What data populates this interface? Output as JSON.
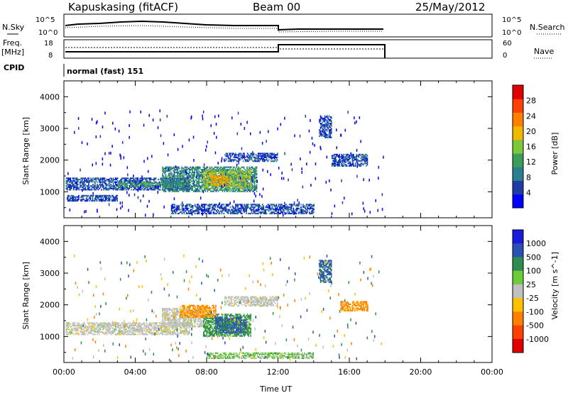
{
  "header": {
    "station": "Kapuskasing (fitACF)",
    "beam": "Beam 00",
    "date": "25/May/2012"
  },
  "top_panels": {
    "nsky_label": "N.Sky",
    "nsky_ticks": [
      "10^5",
      "10^0"
    ],
    "nsearch_label": "N.Search",
    "nsearch_ticks": [
      "10^5",
      "10^0"
    ],
    "freq_label": "Freq.",
    "freq_unit": "[MHz]",
    "freq_ticks": [
      "18",
      "8"
    ],
    "nave_label": "Nave",
    "nave_ticks": [
      "60",
      "0"
    ],
    "cpid_label": "CPID",
    "cpid_value": "normal (fast) 151"
  },
  "colors": {
    "power_scale": [
      "#0000ff",
      "#1e3ca8",
      "#2a7f8f",
      "#3a9e5a",
      "#7cc83c",
      "#f0b800",
      "#ff8000",
      "#ff4000",
      "#e00000"
    ],
    "velocity_scale": [
      "#1a1adc",
      "#2a50b4",
      "#2e8c4e",
      "#6ccc3a",
      "#c0c0c0",
      "#ffc000",
      "#ff8000",
      "#ff4000",
      "#e00000"
    ]
  },
  "chart_data": [
    {
      "type": "heatmap",
      "name_hint": "power",
      "xlabel": "Time UT",
      "ylabel": "Slant Range [km]",
      "xlim": [
        0,
        24
      ],
      "ylim": [
        180,
        4500
      ],
      "xticks": [
        "00:00",
        "04:00",
        "08:00",
        "12:00",
        "16:00",
        "20:00",
        "00:00"
      ],
      "yticks": [
        1000,
        2000,
        3000,
        4000
      ],
      "colorbar": {
        "label": "Power [dB]",
        "ticks": [
          "4",
          "8",
          "12",
          "16",
          "20",
          "24",
          "28"
        ],
        "range": [
          0,
          32
        ]
      },
      "regions": [
        {
          "t0": 0.1,
          "t1": 7.0,
          "r0": 1050,
          "r1": 1450,
          "value": 6
        },
        {
          "t0": 3.0,
          "t1": 7.0,
          "r0": 1150,
          "r1": 1300,
          "value": 12
        },
        {
          "t0": 5.5,
          "t1": 10.8,
          "r0": 1000,
          "r1": 1800,
          "value": 10
        },
        {
          "t0": 7.8,
          "t1": 10.5,
          "r0": 1100,
          "r1": 1700,
          "value": 16
        },
        {
          "t0": 8.2,
          "t1": 9.2,
          "r0": 1200,
          "r1": 1500,
          "value": 21
        },
        {
          "t0": 9.0,
          "t1": 12.0,
          "r0": 1950,
          "r1": 2200,
          "value": 6
        },
        {
          "t0": 0.2,
          "t1": 3.0,
          "r0": 700,
          "r1": 900,
          "value": 6
        },
        {
          "t0": 6.0,
          "t1": 14.0,
          "r0": 300,
          "r1": 600,
          "value": 6
        },
        {
          "t0": 14.3,
          "t1": 15.0,
          "r0": 2700,
          "r1": 3400,
          "value": 6
        },
        {
          "t0": 15.0,
          "t1": 17.0,
          "r0": 1800,
          "r1": 2200,
          "value": 6
        }
      ]
    },
    {
      "type": "heatmap",
      "name_hint": "velocity",
      "xlabel": "Time UT",
      "ylabel": "Slant Range [km]",
      "xlim": [
        0,
        24
      ],
      "ylim": [
        180,
        4500
      ],
      "xticks": [
        "00:00",
        "04:00",
        "08:00",
        "12:00",
        "16:00",
        "20:00",
        "00:00"
      ],
      "yticks": [
        1000,
        2000,
        3000,
        4000
      ],
      "colorbar": {
        "label": "Velocity [m s^-1]",
        "ticks": [
          "1000",
          "500",
          "100",
          "25",
          "-25",
          "-100",
          "-500",
          "-1000"
        ]
      },
      "regions": [
        {
          "t0": 0.1,
          "t1": 7.0,
          "r0": 1050,
          "r1": 1450,
          "value": 0
        },
        {
          "t0": 5.5,
          "t1": 8.0,
          "r0": 1300,
          "r1": 1900,
          "value": 0
        },
        {
          "t0": 7.8,
          "t1": 10.5,
          "r0": 1000,
          "r1": 1700,
          "value": 150
        },
        {
          "t0": 8.5,
          "t1": 10.2,
          "r0": 1100,
          "r1": 1600,
          "value": 600
        },
        {
          "t0": 6.5,
          "t1": 8.5,
          "r0": 1600,
          "r1": 2000,
          "value": -150
        },
        {
          "t0": 9.0,
          "t1": 12.0,
          "r0": 1950,
          "r1": 2250,
          "value": 0
        },
        {
          "t0": 8.0,
          "t1": 14.0,
          "r0": 300,
          "r1": 500,
          "value": 60
        },
        {
          "t0": 14.3,
          "t1": 15.0,
          "r0": 2700,
          "r1": 3400,
          "value": 600
        },
        {
          "t0": 15.5,
          "t1": 17.0,
          "r0": 1800,
          "r1": 2100,
          "value": -150
        }
      ]
    }
  ]
}
